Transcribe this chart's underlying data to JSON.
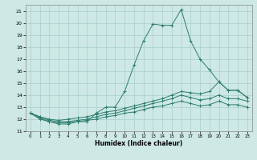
{
  "xlabel": "Humidex (Indice chaleur)",
  "x_values": [
    0,
    1,
    2,
    3,
    4,
    5,
    6,
    7,
    8,
    9,
    10,
    11,
    12,
    13,
    14,
    15,
    16,
    17,
    18,
    19,
    20,
    21,
    22,
    23
  ],
  "line1": [
    12.5,
    12.0,
    11.8,
    11.6,
    11.6,
    11.8,
    11.8,
    12.5,
    13.0,
    13.0,
    14.3,
    16.5,
    18.5,
    19.9,
    19.8,
    19.8,
    21.1,
    18.5,
    17.0,
    16.1,
    15.1,
    14.4,
    14.4,
    13.8
  ],
  "line2": [
    12.5,
    12.2,
    12.0,
    11.9,
    12.0,
    12.1,
    12.2,
    12.4,
    12.6,
    12.7,
    12.9,
    13.1,
    13.3,
    13.5,
    13.7,
    14.0,
    14.3,
    14.2,
    14.1,
    14.3,
    15.1,
    14.4,
    14.4,
    13.8
  ],
  "line3": [
    12.5,
    12.2,
    11.9,
    11.8,
    11.8,
    11.9,
    12.0,
    12.2,
    12.4,
    12.5,
    12.7,
    12.9,
    13.1,
    13.3,
    13.5,
    13.7,
    14.0,
    13.8,
    13.6,
    13.7,
    14.0,
    13.7,
    13.7,
    13.5
  ],
  "line4": [
    12.5,
    12.1,
    11.8,
    11.7,
    11.7,
    11.8,
    11.9,
    12.0,
    12.2,
    12.3,
    12.5,
    12.6,
    12.8,
    13.0,
    13.1,
    13.3,
    13.5,
    13.3,
    13.1,
    13.2,
    13.5,
    13.2,
    13.2,
    13.0
  ],
  "line_color": "#2e7d6e",
  "bg_color": "#cde8e5",
  "grid_color": "#aacfcc",
  "ylim": [
    11,
    21.5
  ],
  "yticks": [
    11,
    12,
    13,
    14,
    15,
    16,
    17,
    18,
    19,
    20,
    21
  ],
  "xlim": [
    -0.5,
    23.5
  ],
  "xticks": [
    0,
    1,
    2,
    3,
    4,
    5,
    6,
    7,
    8,
    9,
    10,
    11,
    12,
    13,
    14,
    15,
    16,
    17,
    18,
    19,
    20,
    21,
    22,
    23
  ]
}
